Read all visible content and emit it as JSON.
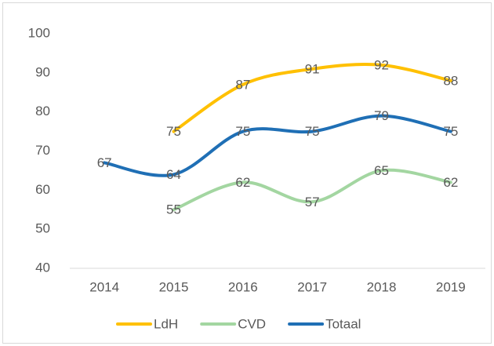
{
  "chart_data": {
    "type": "line",
    "categories": [
      "2014",
      "2015",
      "2016",
      "2017",
      "2018",
      "2019"
    ],
    "series": [
      {
        "name": "LdH",
        "color": "#ffc000",
        "values": [
          null,
          75,
          87,
          91,
          92,
          88
        ]
      },
      {
        "name": "CVD",
        "color": "#a3d6a1",
        "values": [
          null,
          55,
          62,
          57,
          65,
          62
        ]
      },
      {
        "name": "Totaal",
        "color": "#1f6fb5",
        "values": [
          67,
          64,
          75,
          75,
          79,
          75
        ]
      }
    ],
    "ylim": [
      40,
      100
    ],
    "yticks": [
      40,
      50,
      60,
      70,
      80,
      90,
      100
    ],
    "grid": false,
    "legend": "bottom",
    "smooth": true,
    "data_labels": true
  }
}
